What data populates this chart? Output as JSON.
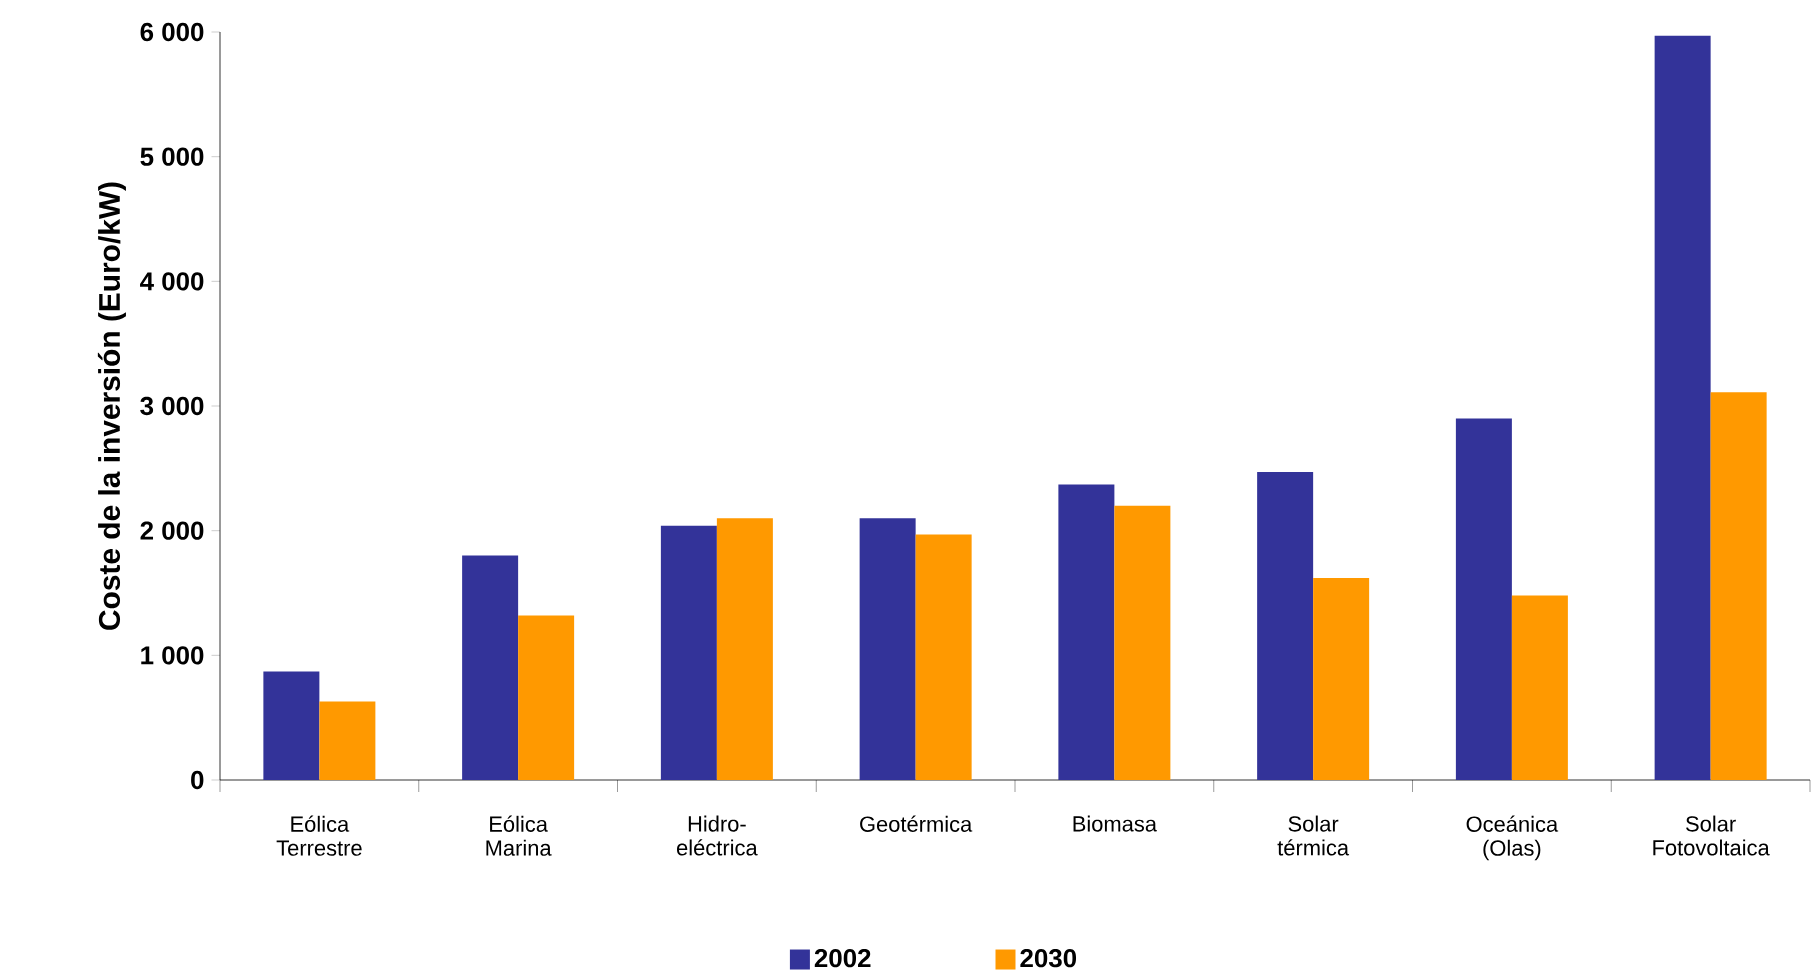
{
  "chart_data": {
    "type": "bar",
    "ylabel": "Coste de la inversión (Euro/kW)",
    "categories": [
      "Eólica Terrestre",
      "Eólica Marina",
      "Hidro-eléctrica",
      "Geotérmica",
      "Biomasa",
      "Solar térmica",
      "Oceánica (Olas)",
      "Solar Fotovoltaica"
    ],
    "series": [
      {
        "name": "2002",
        "color": "#333399",
        "values": [
          870,
          1800,
          2040,
          2100,
          2370,
          2470,
          2900,
          5970
        ]
      },
      {
        "name": "2030",
        "color": "#ff9900",
        "values": [
          630,
          1320,
          2100,
          1970,
          2200,
          1620,
          1480,
          3110
        ]
      }
    ],
    "ylim": [
      0,
      6000
    ],
    "yticks": [
      0,
      {
        "value": 1000,
        "label": "1 000"
      },
      {
        "value": 2000,
        "label": "2 000"
      },
      {
        "value": 3000,
        "label": "3 000"
      },
      {
        "value": 4000,
        "label": "4 000"
      },
      {
        "value": 5000,
        "label": "5 000"
      },
      {
        "value": 6000,
        "label": "6 000"
      }
    ],
    "legend": "bottom"
  }
}
